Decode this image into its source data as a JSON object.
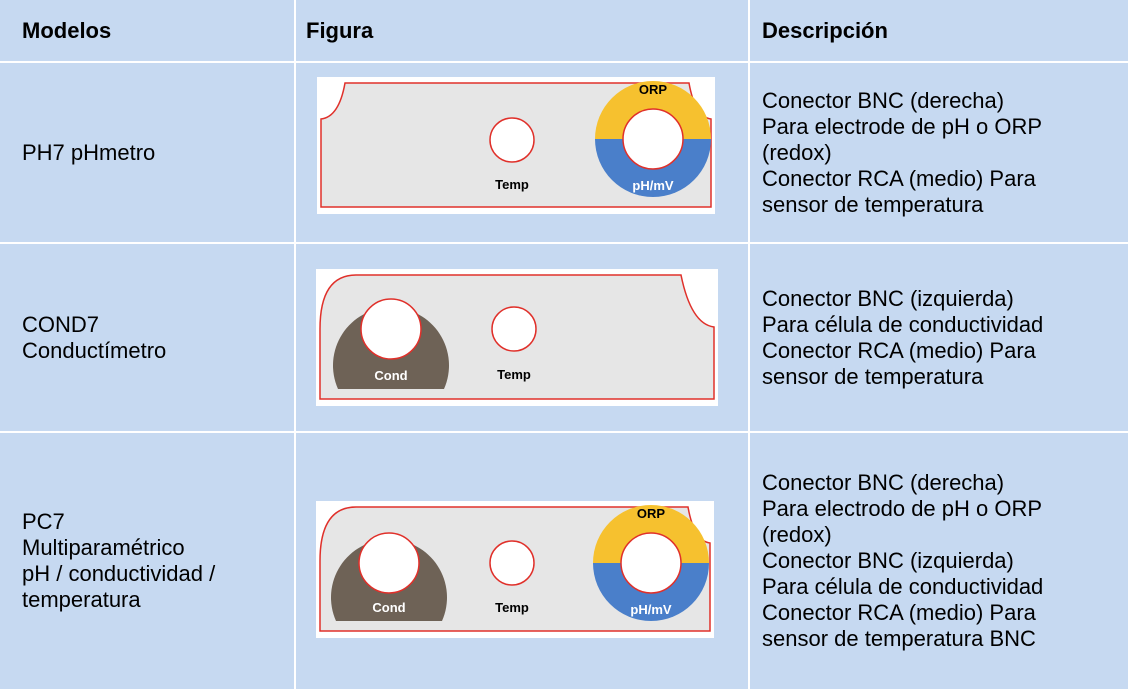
{
  "table": {
    "header": [
      "Modelos",
      "Figura",
      "Descripción"
    ],
    "rows": [
      {
        "model": [
          "PH7 pHmetro"
        ],
        "figure": {
          "orp": "ORP",
          "temp": "Temp",
          "ph": "pH/mV"
        },
        "description": [
          "Conector BNC (derecha)",
          "Para electrode de pH o ORP",
          "(redox)",
          "Conector RCA (medio) Para",
          "sensor de temperatura"
        ]
      },
      {
        "model": [
          "COND7",
          "Conductímetro"
        ],
        "figure": {
          "cond": "Cond",
          "temp": "Temp"
        },
        "description": [
          "Conector BNC (izquierda)",
          "Para célula de conductividad",
          "Conector RCA (medio) Para",
          "sensor de temperatura"
        ]
      },
      {
        "model": [
          "PC7",
          "Multiparamétrico",
          "pH / conductividad /",
          "temperatura"
        ],
        "figure": {
          "orp": "ORP",
          "cond": "Cond",
          "temp": "Temp",
          "ph": "pH/mV"
        },
        "description": [
          "Conector BNC (derecha)",
          "Para electrodo de pH o ORP",
          "(redox)",
          "Conector BNC (izquierda)",
          "Para célula de conductividad",
          "Conector RCA (medio) Para",
          "sensor de temperatura BNC"
        ]
      }
    ]
  }
}
